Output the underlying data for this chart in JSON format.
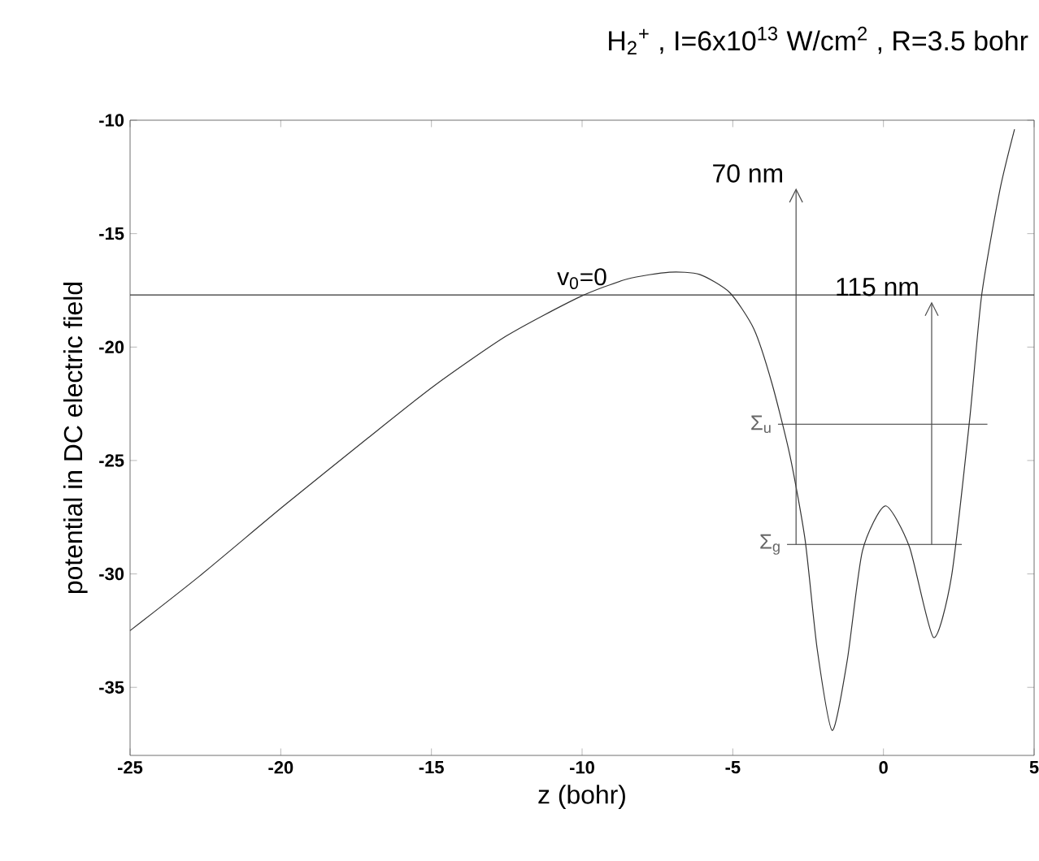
{
  "chart_data": {
    "type": "line",
    "title": "H$_{2}$$^{+}$ , I=6x10$^{13}$ W/cm$^{2}$ , R=3.5 bohr",
    "xlabel": "z (bohr)",
    "ylabel": "potential in DC electric field",
    "xlim": [
      -25,
      5
    ],
    "ylim": [
      -38,
      -10
    ],
    "xticks": [
      -25,
      -20,
      -15,
      -10,
      -5,
      0,
      5
    ],
    "yticks": [
      -35,
      -30,
      -25,
      -20,
      -15,
      -10
    ],
    "grid": false,
    "legend": false,
    "marker": "none",
    "line_style": "solid",
    "series": [
      {
        "color": "#333333",
        "x": [
          -25,
          -22.7,
          -19.9,
          -17.1,
          -14.9,
          -12.5,
          -10.1,
          -8.5,
          -7.1,
          -6.1,
          -5.1,
          -4.3,
          -3.7,
          -3.1,
          -2.6,
          -2.2,
          -1.7,
          -1.2,
          -0.7,
          0.06,
          0.86,
          1.66,
          2.26,
          2.86,
          3.26,
          3.86,
          4.35
        ],
        "values": [
          -32.5,
          -30.1,
          -27.0,
          -24.0,
          -21.7,
          -19.5,
          -17.8,
          -17.0,
          -16.7,
          -16.8,
          -17.6,
          -19.2,
          -21.6,
          -24.8,
          -28.5,
          -33.3,
          -36.9,
          -33.8,
          -29.0,
          -27.0,
          -28.8,
          -32.8,
          -30.1,
          -23.2,
          -17.7,
          -13.1,
          -10.4
        ]
      },
      {
        "name": "v$_{0}$=0",
        "color": "#333333",
        "x": [
          -25,
          5
        ],
        "values": [
          -17.7,
          -17.7
        ]
      },
      {
        "name": "Σ$_{u}$",
        "color": "#333333",
        "x": [
          -3.5,
          3.45
        ],
        "values": [
          -23.4,
          -23.4
        ]
      },
      {
        "name": "Σ$_{g}$",
        "color": "#333333",
        "x": [
          -3.2,
          2.6
        ],
        "values": [
          -28.7,
          -28.7
        ]
      }
    ],
    "annotations": [
      {
        "text": "70 nm",
        "x": -2.9,
        "y": -28.7
      },
      {
        "text": "115 nm",
        "x": 1.6,
        "y": -28.7
      }
    ]
  }
}
